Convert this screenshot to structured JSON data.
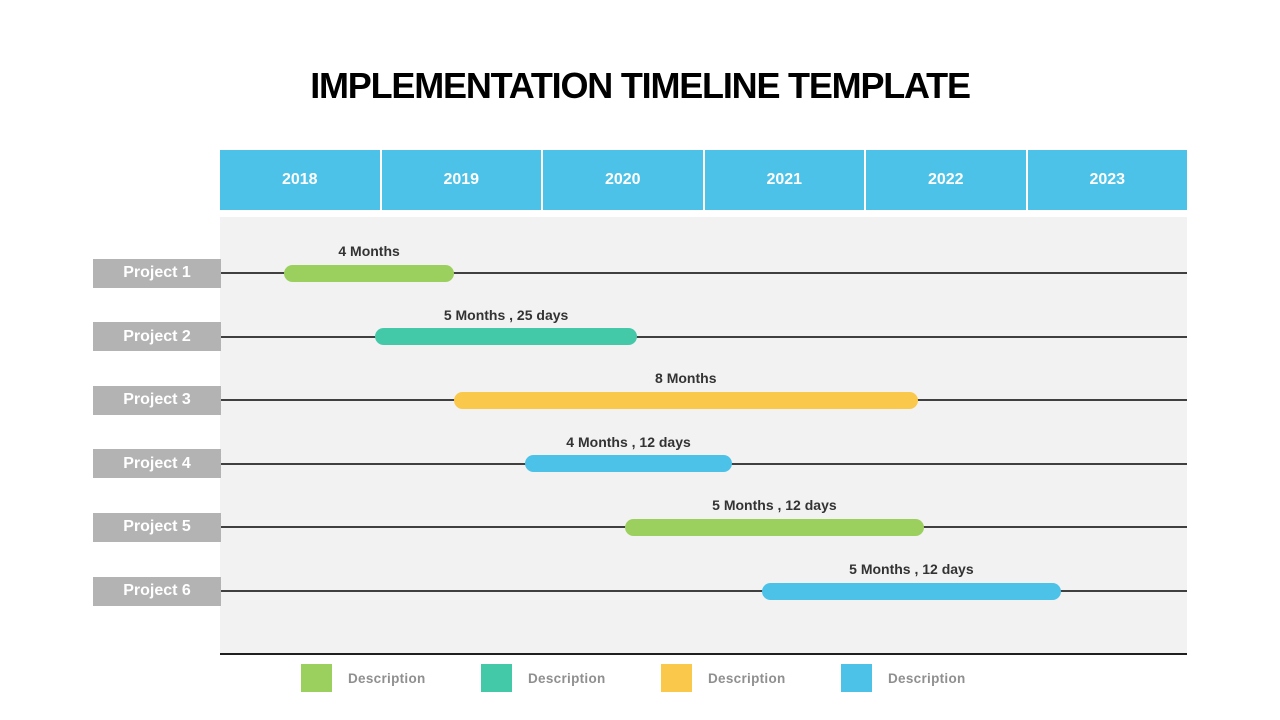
{
  "title": "IMPLEMENTATION TIMELINE TEMPLATE",
  "colors": {
    "header": "#4DC2E8",
    "chart_bg": "#F2F2F2",
    "row_label_bg": "#B3B3B3",
    "row_line": "#404040",
    "baseline": "#1F1F1F",
    "green": "#9CD05E",
    "teal": "#44C9A8",
    "yellow": "#FAC84B",
    "blue": "#4DC2E8",
    "duration_text": "#333333",
    "legend_text": "#8F8F8F"
  },
  "chart_data": {
    "type": "gantt",
    "title": "IMPLEMENTATION TIMELINE TEMPLATE",
    "x_axis": {
      "unit": "year",
      "ticks": [
        "2018",
        "2019",
        "2020",
        "2021",
        "2022",
        "2023"
      ],
      "range": [
        2018,
        2024
      ]
    },
    "grid": "horizontal-row-lines",
    "legend_position": "bottom",
    "projects": [
      {
        "label": "Project 1",
        "duration_label": "4 Months",
        "start_year": 2018.4,
        "end_year": 2019.45,
        "color_key": "green"
      },
      {
        "label": "Project 2",
        "duration_label": "5 Months , 25 days",
        "start_year": 2018.96,
        "end_year": 2020.59,
        "color_key": "teal"
      },
      {
        "label": "Project 3",
        "duration_label": "8 Months",
        "start_year": 2019.45,
        "end_year": 2022.33,
        "color_key": "yellow"
      },
      {
        "label": "Project 4",
        "duration_label": "4 Months , 12 days",
        "start_year": 2019.89,
        "end_year": 2021.18,
        "color_key": "blue"
      },
      {
        "label": "Project 5",
        "duration_label": "5 Months , 12 days",
        "start_year": 2020.51,
        "end_year": 2022.37,
        "color_key": "green"
      },
      {
        "label": "Project 6",
        "duration_label": "5 Months , 12 days",
        "start_year": 2021.36,
        "end_year": 2023.22,
        "color_key": "blue"
      }
    ],
    "legend": [
      {
        "label": "Description",
        "color_key": "green"
      },
      {
        "label": "Description",
        "color_key": "teal"
      },
      {
        "label": "Description",
        "color_key": "yellow"
      },
      {
        "label": "Description",
        "color_key": "blue"
      }
    ]
  }
}
